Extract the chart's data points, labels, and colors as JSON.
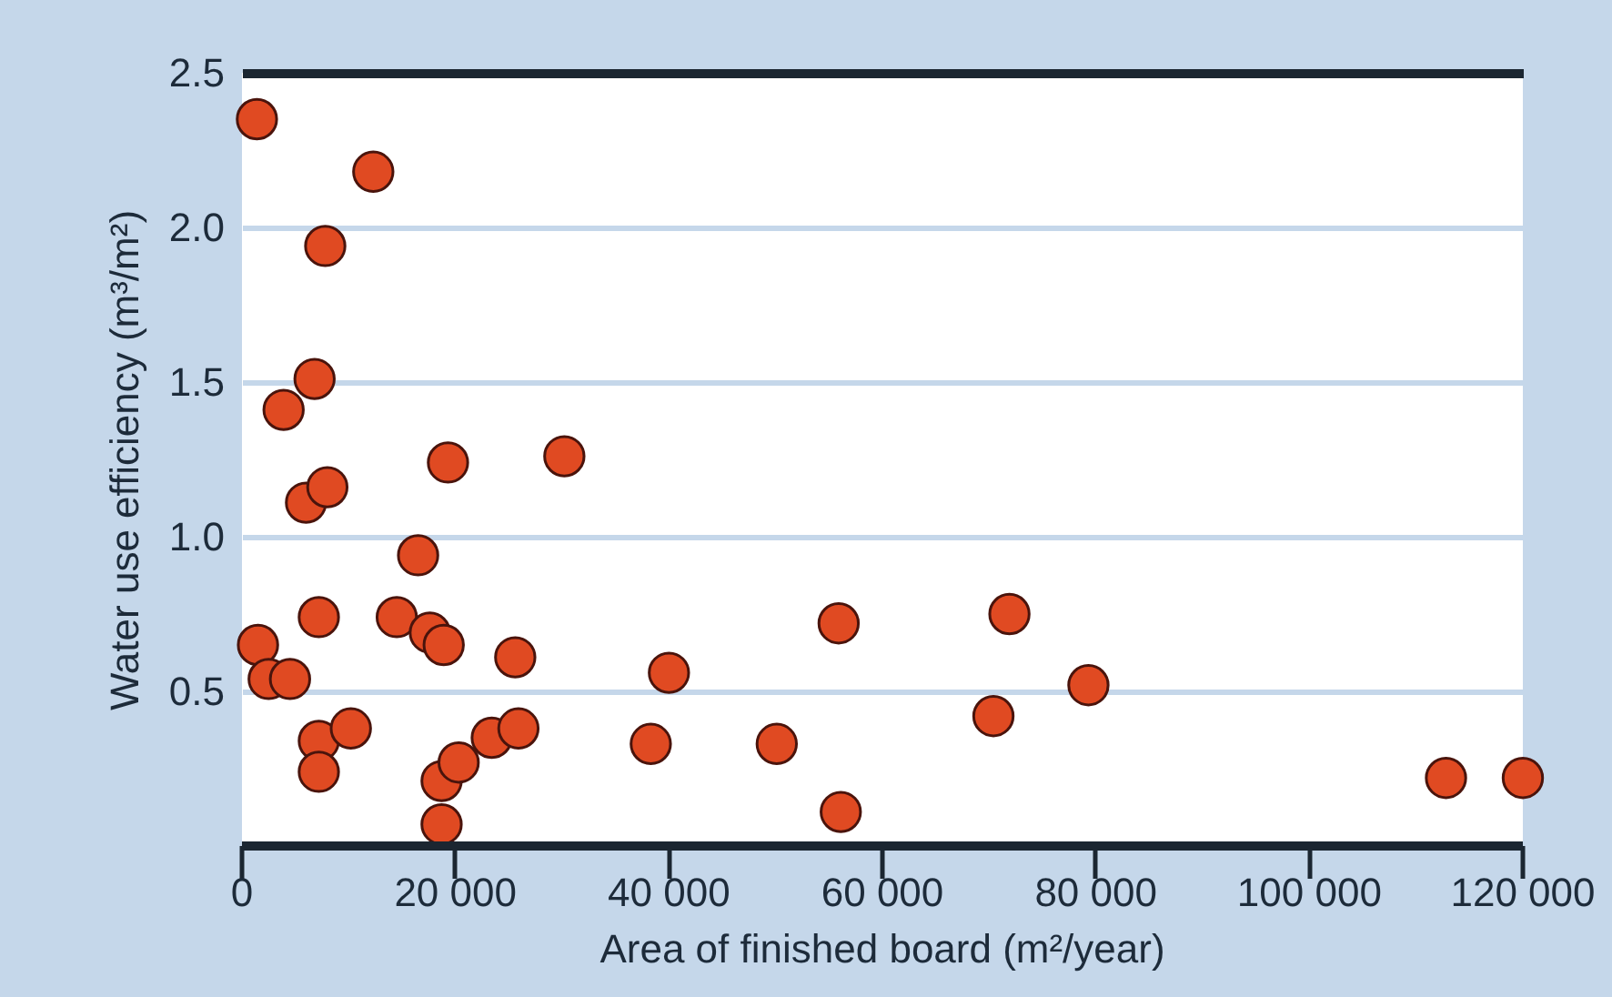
{
  "chart_data": {
    "type": "scatter",
    "xlabel": "Area of finished board (m²/year)",
    "ylabel": "Water use efficiency (m³/m²)",
    "x": [
      1400,
      12300,
      7800,
      6800,
      3900,
      6000,
      8000,
      19300,
      30200,
      16500,
      7200,
      14500,
      17600,
      18900,
      25600,
      1500,
      2500,
      4500,
      7200,
      10200,
      7200,
      18700,
      20300,
      23400,
      25900,
      18700,
      40000,
      38300,
      50100,
      56100,
      55900,
      71900,
      70400,
      79300,
      112800,
      120000
    ],
    "series": [
      {
        "color": "#e04a22",
        "values": [
          2.35,
          2.18,
          1.94,
          1.51,
          1.41,
          1.11,
          1.16,
          1.24,
          1.26,
          0.94,
          0.74,
          0.74,
          0.69,
          0.65,
          0.61,
          0.65,
          0.54,
          0.54,
          0.34,
          0.38,
          0.24,
          0.21,
          0.27,
          0.35,
          0.38,
          0.07,
          0.56,
          0.33,
          0.33,
          0.11,
          0.72,
          0.75,
          0.42,
          0.52,
          0.22,
          0.22
        ]
      }
    ],
    "xlim": [
      0,
      120000
    ],
    "ylim": [
      0,
      2.5
    ],
    "xticks": [
      0,
      {
        "value": 20000,
        "label": "20 000"
      },
      {
        "value": 40000,
        "label": "40 000"
      },
      {
        "value": 60000,
        "label": "60 000"
      },
      {
        "value": 80000,
        "label": "80 000"
      },
      {
        "value": 100000,
        "label": "100 000"
      },
      {
        "value": 120000,
        "label": "120 000"
      }
    ],
    "yticks": [
      0.5,
      {
        "value": 1,
        "label": "1.0"
      },
      1.5,
      {
        "value": 2,
        "label": "2.0"
      },
      2.5
    ],
    "grid": "y",
    "marker": "circle"
  }
}
